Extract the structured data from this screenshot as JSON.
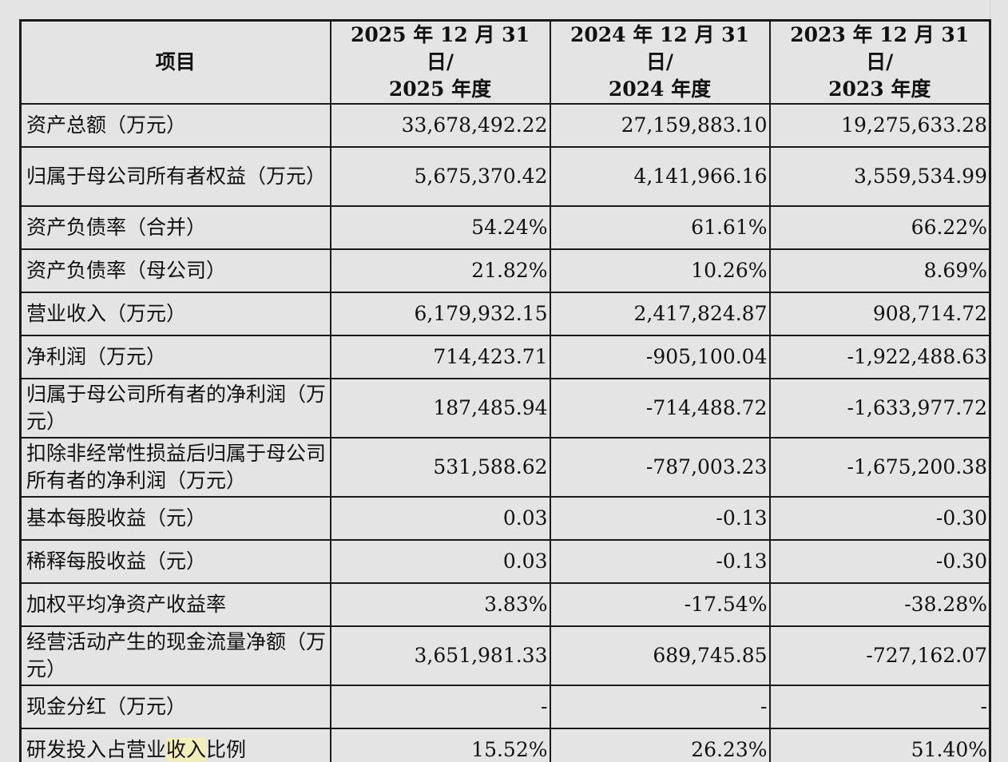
{
  "table": {
    "headers": [
      "项目",
      "2025 年 12 月 31 日/\n2025 年度",
      "2024 年 12 月 31 日/\n2024 年度",
      "2023 年 12 月 31 日/\n2023 年度"
    ],
    "rows": [
      {
        "label": "资产总额（万元）",
        "values": [
          "33,678,492.22",
          "27,159,883.10",
          "19,275,633.28"
        ],
        "lines": 1
      },
      {
        "label": "归属于母公司所有者权益（万元）",
        "values": [
          "5,675,370.42",
          "4,141,966.16",
          "3,559,534.99"
        ],
        "lines": 2
      },
      {
        "label": "资产负债率（合并）",
        "values": [
          "54.24%",
          "61.61%",
          "66.22%"
        ],
        "lines": 1
      },
      {
        "label": "资产负债率（母公司）",
        "values": [
          "21.82%",
          "10.26%",
          "8.69%"
        ],
        "lines": 1
      },
      {
        "label": "营业收入（万元）",
        "values": [
          "6,179,932.15",
          "2,417,824.87",
          "908,714.72"
        ],
        "lines": 1
      },
      {
        "label": "净利润（万元）",
        "values": [
          "714,423.71",
          "-905,100.04",
          "-1,922,488.63"
        ],
        "lines": 1
      },
      {
        "label": "归属于母公司所有者的净利润（万元）",
        "values": [
          "187,485.94",
          "-714,488.72",
          "-1,633,977.72"
        ],
        "lines": 2
      },
      {
        "label": "扣除非经常性损益后归属于母公司所有者的净利润（万元）",
        "values": [
          "531,588.62",
          "-787,003.23",
          "-1,675,200.38"
        ],
        "lines": 2
      },
      {
        "label": "基本每股收益（元）",
        "values": [
          "0.03",
          "-0.13",
          "-0.30"
        ],
        "lines": 1
      },
      {
        "label": "稀释每股收益（元）",
        "values": [
          "0.03",
          "-0.13",
          "-0.30"
        ],
        "lines": 1
      },
      {
        "label": "加权平均净资产收益率",
        "values": [
          "3.83%",
          "-17.54%",
          "-38.28%"
        ],
        "lines": 1
      },
      {
        "label": "经营活动产生的现金流量净额（万元）",
        "values": [
          "3,651,981.33",
          "689,745.85",
          "-727,162.07"
        ],
        "lines": 2
      },
      {
        "label": "现金分红（万元）",
        "values": [
          "-",
          "-",
          "-"
        ],
        "lines": 1
      },
      {
        "label": "研发投入占营业收入比例",
        "values": [
          "15.52%",
          "26.23%",
          "51.40%"
        ],
        "lines": 1,
        "highlight": "收入"
      }
    ]
  },
  "colors": {
    "background": "#e4e4e4",
    "border": "#1a1a1a",
    "highlight": "#f2f0b8"
  }
}
